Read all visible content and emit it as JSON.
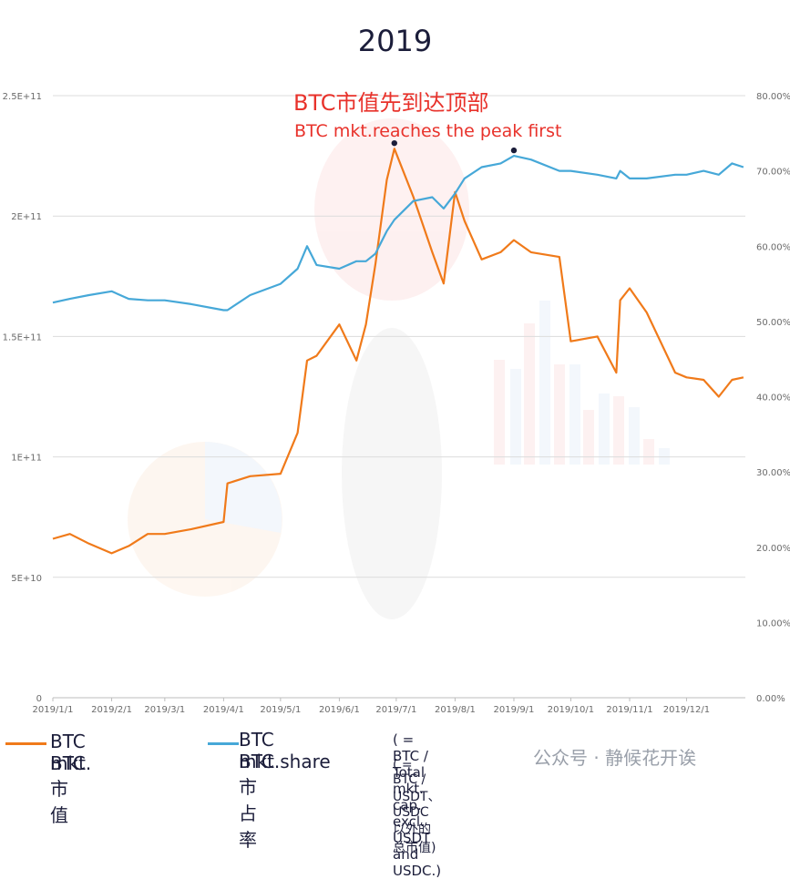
{
  "chart_data": {
    "type": "line",
    "title": "2019",
    "x_tick_labels": [
      "2019/1/1",
      "2019/2/1",
      "2019/3/1",
      "2019/4/1",
      "2019/5/1",
      "2019/6/1",
      "2019/7/1",
      "2019/8/1",
      "2019/9/1",
      "2019/10/1",
      "2019/11/1",
      "2019/12/1"
    ],
    "y_left_tick_labels": [
      "0",
      "5E+10",
      "1E+11",
      "1.5E+11",
      "2E+11",
      "2.5E+11"
    ],
    "y_left_range": [
      0,
      250000000000
    ],
    "y_right_tick_labels": [
      "0.00%",
      "10.00%",
      "20.00%",
      "30.00%",
      "40.00%",
      "50.00%",
      "60.00%",
      "70.00%",
      "80.00%"
    ],
    "y_right_range": [
      0,
      80
    ],
    "grid": true,
    "x": [
      "2019-01-01",
      "2019-01-10",
      "2019-01-20",
      "2019-02-01",
      "2019-02-10",
      "2019-02-20",
      "2019-03-01",
      "2019-03-15",
      "2019-04-01",
      "2019-04-03",
      "2019-04-15",
      "2019-05-01",
      "2019-05-10",
      "2019-05-15",
      "2019-05-20",
      "2019-06-01",
      "2019-06-10",
      "2019-06-15",
      "2019-06-20",
      "2019-06-26",
      "2019-06-30",
      "2019-07-10",
      "2019-07-20",
      "2019-07-26",
      "2019-08-01",
      "2019-08-06",
      "2019-08-15",
      "2019-08-25",
      "2019-09-01",
      "2019-09-10",
      "2019-09-25",
      "2019-10-01",
      "2019-10-15",
      "2019-10-25",
      "2019-10-27",
      "2019-11-01",
      "2019-11-10",
      "2019-11-25",
      "2019-12-01",
      "2019-12-10",
      "2019-12-18",
      "2019-12-25",
      "2019-12-31"
    ],
    "series": [
      {
        "name": "BTC mkt.",
        "axis": "left",
        "color": "#f07a1a",
        "values": [
          66000000000,
          68000000000,
          64000000000,
          60000000000,
          63000000000,
          68000000000,
          68000000000,
          70000000000,
          73000000000,
          89000000000,
          92000000000,
          93000000000,
          110000000000,
          140000000000,
          142000000000,
          155000000000,
          140000000000,
          155000000000,
          180000000000,
          215000000000,
          228000000000,
          208000000000,
          185000000000,
          172000000000,
          210000000000,
          198000000000,
          182000000000,
          185000000000,
          190000000000,
          185000000000,
          183000000000,
          148000000000,
          150000000000,
          135000000000,
          165000000000,
          170000000000,
          160000000000,
          135000000000,
          133000000000,
          132000000000,
          125000000000,
          132000000000,
          133000000000
        ]
      },
      {
        "name": "BTC mkt.share",
        "axis": "right",
        "color": "#46a8d8",
        "values": [
          52.5,
          53,
          53.5,
          54,
          53,
          52.8,
          52.8,
          52.3,
          51.5,
          51.5,
          53.5,
          55,
          57,
          60,
          57.5,
          57,
          58,
          58,
          59,
          62,
          63.5,
          66,
          66.5,
          65,
          67,
          69,
          70.5,
          71,
          72,
          71.5,
          70,
          70,
          69.5,
          69,
          70,
          69,
          69,
          69.5,
          69.5,
          70,
          69.5,
          71,
          70.5
        ]
      }
    ],
    "annotations": [
      {
        "text_cn": "BTC市值先到达顶部",
        "text_en": "BTC mkt.reaches the peak first"
      }
    ]
  },
  "legend": {
    "btc_mkt_en": "BTC mkt.",
    "btc_mkt_cn": "BTC市值",
    "share_en": "BTC mkt.share",
    "share_note_en": "( = BTC / Total mkt. cap. excl. USDT and USDC.)",
    "share_cn": "BTC市占率",
    "share_note_cn": "( = BTC / USDT、USDC以外的总市值)"
  },
  "watermark": "公众号 · 静候花开诶",
  "colors": {
    "orange": "#f07a1a",
    "blue": "#46a8d8",
    "annotation": "#e8322b",
    "grid": "#dddddd"
  }
}
